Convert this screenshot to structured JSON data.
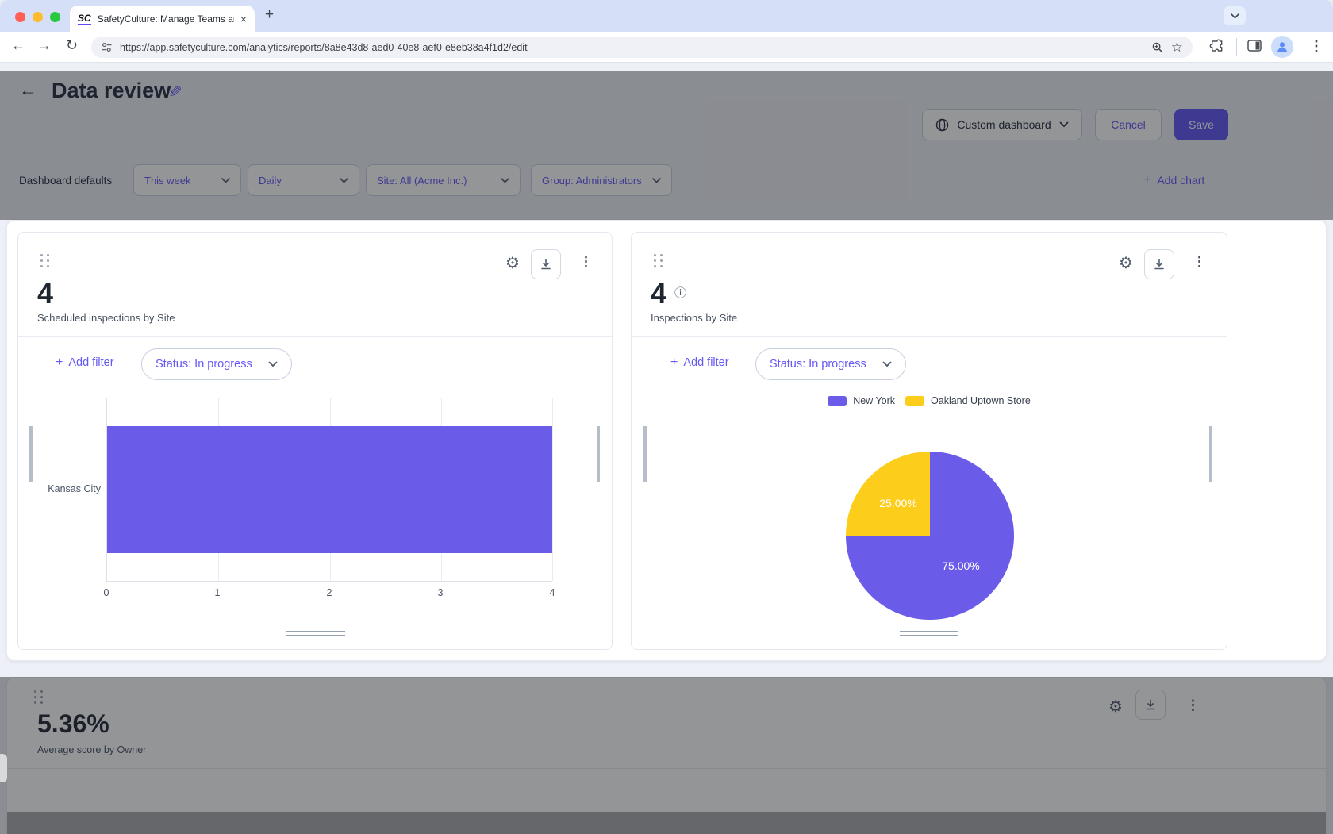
{
  "browser": {
    "tab_title": "SafetyCulture: Manage Teams and...",
    "favicon_text": "SC",
    "url": "https://app.safetyculture.com/analytics/reports/8a8e43d8-aed0-40e8-aef0-e8eb38a4f1d2/edit"
  },
  "icons": {
    "gear": "⚙",
    "kebab": "⋮",
    "info": "ⓘ",
    "tab_close": "×",
    "new_tab": "+",
    "back": "←",
    "forward": "→",
    "reload": "↻",
    "star": "☆",
    "pencil": "✎",
    "plus": "+"
  },
  "header": {
    "title": "Data review",
    "dashboard_type_label": "Custom dashboard",
    "cancel_label": "Cancel",
    "save_label": "Save"
  },
  "filter_bar": {
    "defaults_label": "Dashboard defaults",
    "time_range": "This week",
    "granularity": "Daily",
    "site_filter": "Site: All (Acme Inc.)",
    "group_filter": "Group: Administrators",
    "add_chart_label": "Add chart"
  },
  "cards": {
    "scheduled_inspections": {
      "value": "4",
      "subtitle": "Scheduled inspections by Site",
      "add_filter_label": "Add filter",
      "status_filter": "Status: In progress"
    },
    "inspections_by_site": {
      "value": "4",
      "subtitle": "Inspections by Site",
      "add_filter_label": "Add filter",
      "status_filter": "Status: In progress"
    },
    "average_score": {
      "value": "5.36%",
      "subtitle": "Average score by Owner"
    }
  },
  "chart_data": [
    {
      "type": "bar",
      "orientation": "horizontal",
      "title": "Scheduled inspections by Site",
      "categories": [
        "Kansas City"
      ],
      "values": [
        4
      ],
      "xlim": [
        0,
        4
      ],
      "xticks": [
        "0",
        "1",
        "2",
        "3",
        "4"
      ],
      "bar_color": "#6A5CE8",
      "grid": true
    },
    {
      "type": "pie",
      "title": "Inspections by Site",
      "labels": [
        "New York",
        "Oakland Uptown Store"
      ],
      "values": [
        75,
        25
      ],
      "value_labels": [
        "75.00%",
        "25.00%"
      ],
      "colors": [
        "#6A5CE8",
        "#FCCD1B"
      ],
      "legend_position": "top"
    }
  ],
  "colors": {
    "accent": "#6559F4",
    "chart_purple": "#6A5CE8",
    "chart_yellow": "#FCCD1B",
    "save_button_bg": "#6559F4"
  }
}
